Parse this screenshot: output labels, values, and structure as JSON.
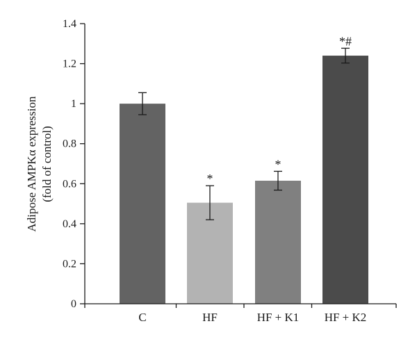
{
  "chart_data": {
    "type": "bar",
    "categories": [
      "C",
      "HF",
      "HF + K1",
      "HF + K2"
    ],
    "values": [
      1.0,
      0.505,
      0.615,
      1.24
    ],
    "errors": [
      0.055,
      0.085,
      0.047,
      0.037
    ],
    "significance": [
      "",
      "*",
      "*",
      "*#"
    ],
    "bar_colors": [
      "#636363",
      "#b3b3b3",
      "#808080",
      "#4b4b4b"
    ],
    "ylabel_lines": [
      "Adipose AMPKα expression",
      "(fold of control)"
    ],
    "xlabel": "",
    "title": "",
    "ylim": [
      0,
      1.4
    ],
    "yticks": [
      0,
      0.2,
      0.4,
      0.6,
      0.8,
      1,
      1.2,
      1.4
    ],
    "ytick_labels": [
      "0",
      "0.2",
      "0.4",
      "0.6",
      "0.8",
      "1",
      "1.2",
      "1.4"
    ],
    "grid": false,
    "legend": "none"
  }
}
